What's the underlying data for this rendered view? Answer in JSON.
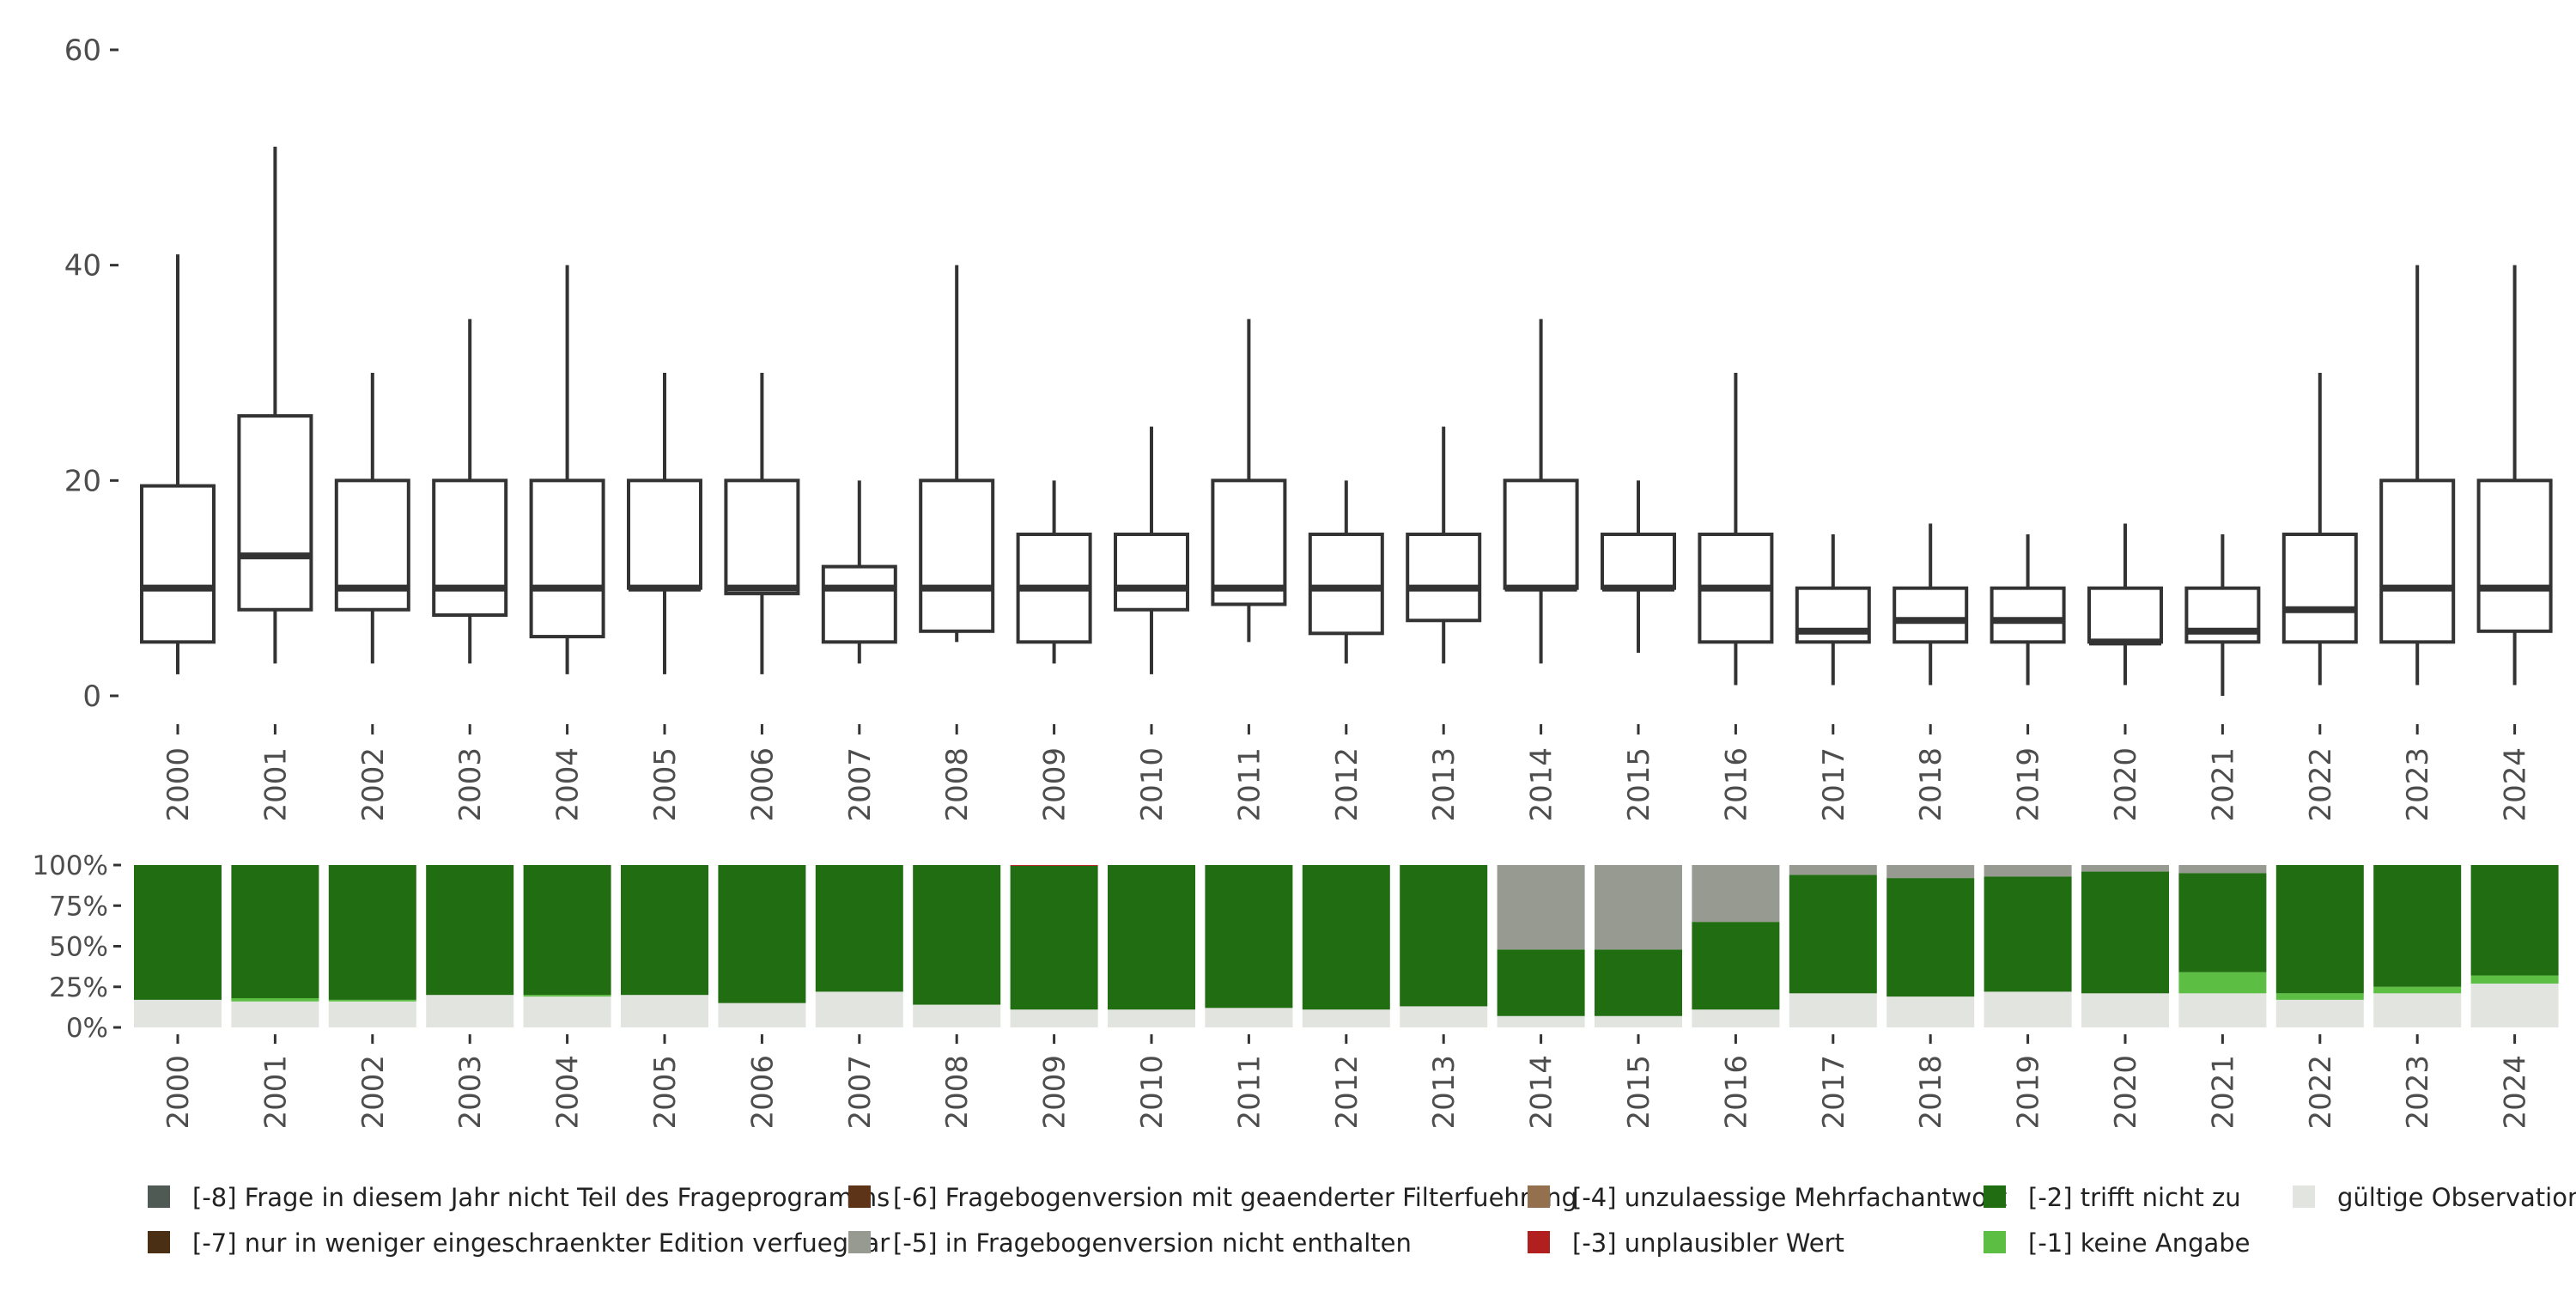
{
  "chart_data": [
    {
      "type": "boxplot",
      "categories": [
        "2000",
        "2001",
        "2002",
        "2003",
        "2004",
        "2005",
        "2006",
        "2007",
        "2008",
        "2009",
        "2010",
        "2011",
        "2012",
        "2013",
        "2014",
        "2015",
        "2016",
        "2017",
        "2018",
        "2019",
        "2020",
        "2021",
        "2022",
        "2023",
        "2024"
      ],
      "boxes": [
        {
          "min": 2,
          "q1": 5,
          "median": 10,
          "q3": 19.5,
          "max": 41
        },
        {
          "min": 3,
          "q1": 8,
          "median": 13,
          "q3": 26,
          "max": 51
        },
        {
          "min": 3,
          "q1": 8,
          "median": 10,
          "q3": 20,
          "max": 30
        },
        {
          "min": 3,
          "q1": 7.5,
          "median": 10,
          "q3": 20,
          "max": 35
        },
        {
          "min": 2,
          "q1": 5.5,
          "median": 10,
          "q3": 20,
          "max": 40
        },
        {
          "min": 2,
          "q1": 10,
          "median": 10,
          "q3": 20,
          "max": 30
        },
        {
          "min": 2,
          "q1": 9.5,
          "median": 10,
          "q3": 20,
          "max": 30
        },
        {
          "min": 3,
          "q1": 5,
          "median": 10,
          "q3": 12,
          "max": 20
        },
        {
          "min": 5,
          "q1": 6,
          "median": 10,
          "q3": 20,
          "max": 40
        },
        {
          "min": 3,
          "q1": 5,
          "median": 10,
          "q3": 15,
          "max": 20
        },
        {
          "min": 2,
          "q1": 8,
          "median": 10,
          "q3": 15,
          "max": 25
        },
        {
          "min": 5,
          "q1": 8.5,
          "median": 10,
          "q3": 20,
          "max": 35
        },
        {
          "min": 3,
          "q1": 5.8,
          "median": 10,
          "q3": 15,
          "max": 20
        },
        {
          "min": 3,
          "q1": 7,
          "median": 10,
          "q3": 15,
          "max": 25
        },
        {
          "min": 3,
          "q1": 10,
          "median": 10,
          "q3": 20,
          "max": 35
        },
        {
          "min": 4,
          "q1": 10,
          "median": 10,
          "q3": 15,
          "max": 20
        },
        {
          "min": 1,
          "q1": 5,
          "median": 10,
          "q3": 15,
          "max": 30
        },
        {
          "min": 1,
          "q1": 5,
          "median": 6,
          "q3": 10,
          "max": 15
        },
        {
          "min": 1,
          "q1": 5,
          "median": 7,
          "q3": 10,
          "max": 16
        },
        {
          "min": 1,
          "q1": 5,
          "median": 7,
          "q3": 10,
          "max": 15
        },
        {
          "min": 1,
          "q1": 5,
          "median": 5,
          "q3": 10,
          "max": 16
        },
        {
          "min": 0,
          "q1": 5,
          "median": 6,
          "q3": 10,
          "max": 15
        },
        {
          "min": 1,
          "q1": 5,
          "median": 8,
          "q3": 15,
          "max": 30
        },
        {
          "min": 1,
          "q1": 5,
          "median": 10,
          "q3": 20,
          "max": 40
        },
        {
          "min": 1,
          "q1": 6,
          "median": 10,
          "q3": 20,
          "max": 40
        }
      ],
      "ylim": [
        0,
        60
      ],
      "y_ticks": [
        0,
        20,
        40,
        60
      ],
      "grid": false
    },
    {
      "type": "stacked_bar",
      "categories": [
        "2000",
        "2001",
        "2002",
        "2003",
        "2004",
        "2005",
        "2006",
        "2007",
        "2008",
        "2009",
        "2010",
        "2011",
        "2012",
        "2013",
        "2014",
        "2015",
        "2016",
        "2017",
        "2018",
        "2019",
        "2020",
        "2021",
        "2022",
        "2023",
        "2024"
      ],
      "y_ticks": [
        0,
        25,
        50,
        75,
        100
      ],
      "y_tick_labels": [
        "0%",
        "25%",
        "50%",
        "75%",
        "100%"
      ],
      "series": [
        {
          "name": "gültige Observationen",
          "color": "#e2e4df",
          "values": [
            17,
            16,
            16,
            20,
            19,
            20,
            15,
            22,
            14,
            11,
            11,
            12,
            11,
            13,
            7,
            7,
            11,
            21,
            19,
            22,
            21,
            21,
            17,
            21,
            27
          ]
        },
        {
          "name": "[-1] keine Angabe",
          "color": "#5cbf44",
          "values": [
            0,
            2,
            1,
            0,
            1,
            0,
            0,
            0,
            0,
            0,
            0,
            0,
            0,
            0,
            0,
            0,
            0,
            0,
            0,
            0,
            0,
            13,
            4,
            4,
            5
          ]
        },
        {
          "name": "[-2] trifft nicht zu",
          "color": "#216d11",
          "values": [
            83,
            82,
            83,
            80,
            80,
            80,
            85,
            78,
            86,
            88.5,
            89,
            88,
            89,
            87,
            41,
            41,
            54,
            73,
            73,
            71,
            75,
            61,
            79,
            75,
            68
          ]
        },
        {
          "name": "[-3] unplausibler Wert",
          "color": "#b21f1f",
          "values": [
            0,
            0,
            0,
            0,
            0,
            0,
            0,
            0,
            0,
            0.5,
            0,
            0,
            0,
            0,
            0,
            0,
            0,
            0,
            0,
            0,
            0,
            0,
            0,
            0,
            0
          ]
        },
        {
          "name": "[-4] unzulaessige Mehrfachantwort",
          "color": "#94704f",
          "values": [
            0,
            0,
            0,
            0,
            0,
            0,
            0,
            0,
            0,
            0,
            0,
            0,
            0,
            0,
            0,
            0,
            0,
            0,
            0,
            0,
            0,
            0,
            0,
            0,
            0
          ]
        },
        {
          "name": "[-5] in Fragebogenversion nicht enthalten",
          "color": "#979a91",
          "values": [
            0,
            0,
            0,
            0,
            0,
            0,
            0,
            0,
            0,
            0,
            0,
            0,
            0,
            0,
            52,
            52,
            35,
            6,
            8,
            7,
            4,
            5,
            0,
            0,
            0
          ]
        },
        {
          "name": "[-6] Fragebogenversion mit geaenderter Filterfuehrung",
          "color": "#5e3418",
          "values": [
            0,
            0,
            0,
            0,
            0,
            0,
            0,
            0,
            0,
            0,
            0,
            0,
            0,
            0,
            0,
            0,
            0,
            0,
            0,
            0,
            0,
            0,
            0,
            0,
            0
          ]
        },
        {
          "name": "[-7] nur in weniger eingeschraenkter Edition verfuegbar",
          "color": "#4a2f15",
          "values": [
            0,
            0,
            0,
            0,
            0,
            0,
            0,
            0,
            0,
            0,
            0,
            0,
            0,
            0,
            0,
            0,
            0,
            0,
            0,
            0,
            0,
            0,
            0,
            0,
            0
          ]
        },
        {
          "name": "[-8] Frage in diesem Jahr nicht Teil des Frageprogramms",
          "color": "#4f5a54",
          "values": [
            0,
            0,
            0,
            0,
            0,
            0,
            0,
            0,
            0,
            0,
            0,
            0,
            0,
            0,
            0,
            0,
            0,
            0,
            0,
            0,
            0,
            0,
            0,
            0,
            0
          ]
        }
      ],
      "legend": {
        "placement": "bottom",
        "entries": [
          {
            "label": "[-8] Frage in diesem Jahr nicht Teil des Frageprogramms",
            "color": "#4f5a54"
          },
          {
            "label": "[-7] nur in weniger eingeschraenkter Edition verfuegbar",
            "color": "#4a2f15"
          },
          {
            "label": "[-6] Fragebogenversion mit geaenderter Filterfuehrung",
            "color": "#5e3418"
          },
          {
            "label": "[-5] in Fragebogenversion nicht enthalten",
            "color": "#979a91"
          },
          {
            "label": "[-4] unzulaessige Mehrfachantwort",
            "color": "#94704f"
          },
          {
            "label": "[-3] unplausibler Wert",
            "color": "#b21f1f"
          },
          {
            "label": "[-2] trifft nicht zu",
            "color": "#216d11"
          },
          {
            "label": "[-1] keine Angabe",
            "color": "#5cbf44"
          },
          {
            "label": "gültige Observationen",
            "color": "#e2e4df"
          }
        ]
      }
    }
  ]
}
